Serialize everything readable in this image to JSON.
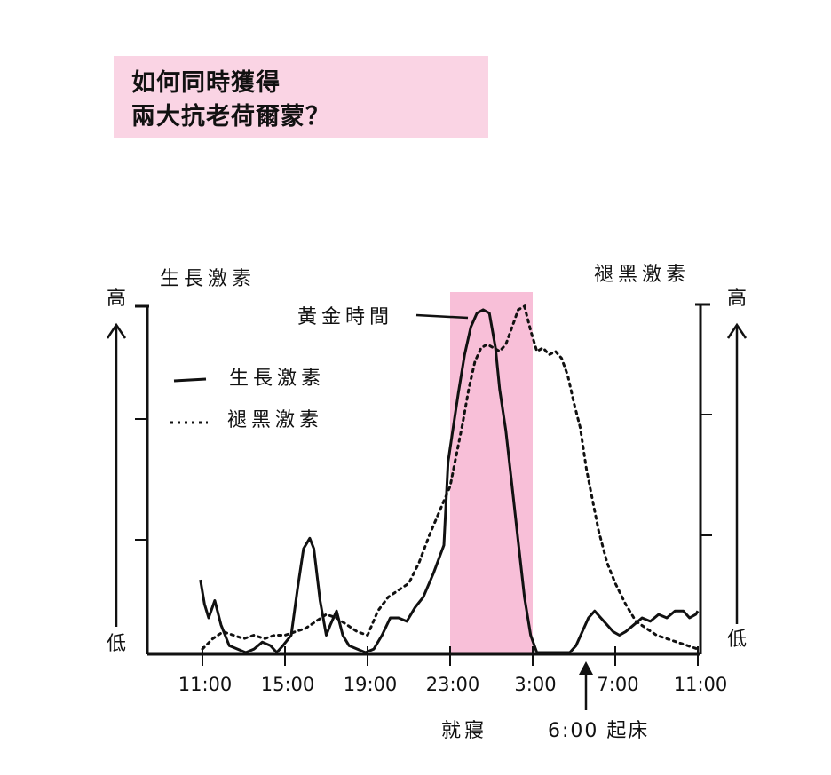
{
  "header": {
    "title_line1": "如何同時獲得",
    "title_line2": "兩大抗老荷爾蒙？"
  },
  "colors": {
    "highlight": "#f8bfd8",
    "title_bg": "#fad4e4",
    "ink": "#111111"
  },
  "chart_data": {
    "type": "line",
    "title": "",
    "left_axis": {
      "label": "生長激素",
      "top": "高",
      "bottom": "低"
    },
    "right_axis": {
      "label": "褪黑激素",
      "top": "高",
      "bottom": "低"
    },
    "x_ticks": [
      "11:00",
      "15:00",
      "19:00",
      "23:00",
      "3:00",
      "7:00",
      "11:00"
    ],
    "legend": [
      {
        "name": "生長激素",
        "style": "solid"
      },
      {
        "name": "褪黑激素",
        "style": "dotted"
      }
    ],
    "highlight": {
      "label": "黃金時間",
      "from": 23,
      "to": 27
    },
    "annotations": {
      "sleep": "就寢",
      "wake": "6:00 起床"
    },
    "series": [
      {
        "name": "生長激素",
        "style": "solid",
        "x": [
          10.9,
          11.1,
          11.3,
          11.6,
          11.9,
          12.3,
          12.7,
          13.1,
          13.5,
          13.9,
          14.3,
          14.6,
          14.9,
          15.3,
          15.6,
          15.9,
          16.2,
          16.4,
          16.7,
          17.0,
          17.2,
          17.5,
          17.8,
          18.1,
          18.5,
          18.9,
          19.3,
          19.7,
          20.1,
          20.5,
          20.9,
          21.3,
          21.7,
          22.2,
          22.7,
          22.9,
          23.1,
          23.4,
          23.7,
          24.0,
          24.3,
          24.6,
          24.9,
          25.2,
          25.4,
          25.7,
          26.0,
          26.3,
          26.6,
          26.9,
          27.2,
          27.5,
          27.8,
          28.1,
          28.5,
          28.8,
          29.1,
          29.4,
          29.7,
          30.0,
          30.3,
          30.6,
          30.9,
          31.2,
          31.5,
          31.9,
          32.3,
          32.7,
          33.1,
          33.5,
          33.9,
          34.3,
          34.6,
          34.9,
          35.0
        ],
        "y": [
          0.21,
          0.14,
          0.1,
          0.15,
          0.08,
          0.02,
          0.01,
          0.0,
          0.01,
          0.03,
          0.02,
          0.0,
          0.02,
          0.05,
          0.18,
          0.3,
          0.33,
          0.3,
          0.15,
          0.05,
          0.08,
          0.12,
          0.05,
          0.02,
          0.01,
          0.0,
          0.01,
          0.05,
          0.1,
          0.1,
          0.09,
          0.13,
          0.16,
          0.23,
          0.31,
          0.55,
          0.63,
          0.75,
          0.86,
          0.94,
          0.98,
          0.99,
          0.98,
          0.88,
          0.76,
          0.64,
          0.48,
          0.32,
          0.16,
          0.05,
          0.0,
          0.0,
          0.0,
          0.0,
          0.0,
          0.0,
          0.02,
          0.06,
          0.1,
          0.12,
          0.1,
          0.08,
          0.06,
          0.05,
          0.06,
          0.08,
          0.1,
          0.09,
          0.11,
          0.1,
          0.12,
          0.12,
          0.1,
          0.11,
          0.12
        ]
      },
      {
        "name": "褪黑激素",
        "style": "dotted",
        "x": [
          11.0,
          11.5,
          12.0,
          12.5,
          13.0,
          13.5,
          14.0,
          14.5,
          15.0,
          15.5,
          16.0,
          16.5,
          17.0,
          17.5,
          18.0,
          18.5,
          19.0,
          19.5,
          20.0,
          20.5,
          21.0,
          21.5,
          22.0,
          22.5,
          23.0,
          23.3,
          23.6,
          23.9,
          24.2,
          24.5,
          24.8,
          25.1,
          25.4,
          25.7,
          26.0,
          26.3,
          26.6,
          26.9,
          27.2,
          27.5,
          27.8,
          28.1,
          28.4,
          28.7,
          29.0,
          29.3,
          29.6,
          29.9,
          30.2,
          30.6,
          31.0,
          31.5,
          32.0,
          32.5,
          33.0,
          33.5,
          34.0,
          34.5,
          35.0
        ],
        "y": [
          0.01,
          0.04,
          0.06,
          0.05,
          0.04,
          0.05,
          0.04,
          0.05,
          0.05,
          0.06,
          0.07,
          0.09,
          0.11,
          0.1,
          0.08,
          0.06,
          0.05,
          0.12,
          0.16,
          0.18,
          0.2,
          0.26,
          0.34,
          0.41,
          0.48,
          0.57,
          0.66,
          0.76,
          0.84,
          0.88,
          0.89,
          0.88,
          0.87,
          0.89,
          0.94,
          0.99,
          1.0,
          0.93,
          0.87,
          0.88,
          0.86,
          0.87,
          0.85,
          0.8,
          0.72,
          0.65,
          0.53,
          0.44,
          0.35,
          0.26,
          0.2,
          0.14,
          0.09,
          0.07,
          0.05,
          0.04,
          0.03,
          0.02,
          0.01
        ]
      }
    ]
  }
}
